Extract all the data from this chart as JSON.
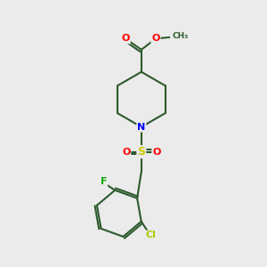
{
  "bg_color": "#ebebeb",
  "bond_color": "#2d5a2d",
  "atom_colors": {
    "O": "#ff0000",
    "N": "#0000ff",
    "S": "#cccc00",
    "F": "#00aa00",
    "Cl": "#aacc00",
    "C": "#2d5a2d",
    "CH3": "#2d5a2d"
  },
  "figsize": [
    3.0,
    3.0
  ],
  "dpi": 100
}
